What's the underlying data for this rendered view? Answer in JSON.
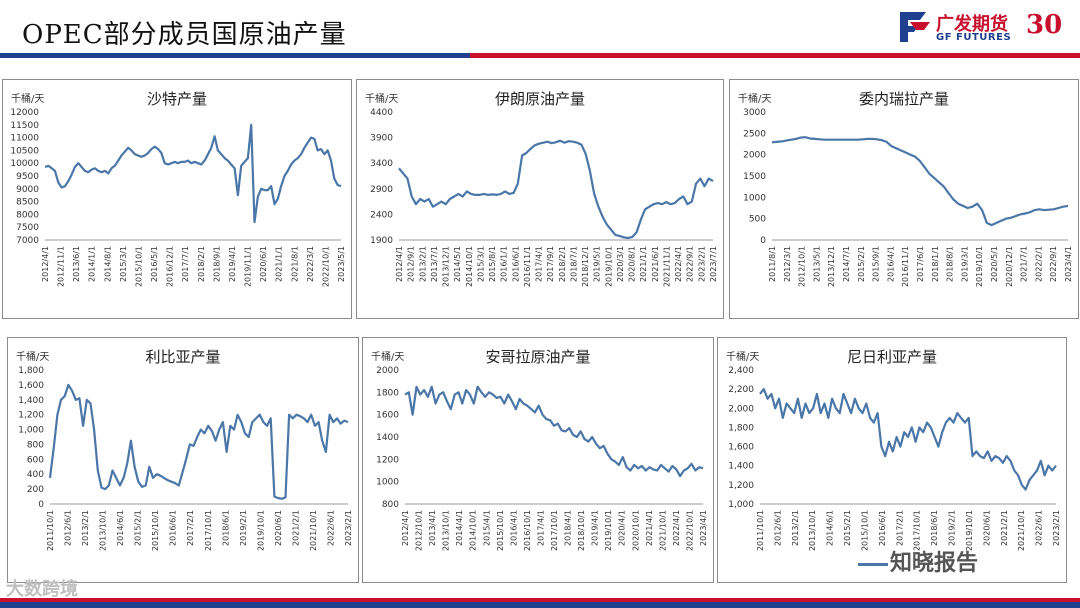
{
  "header": {
    "title": "OPEC部分成员国原油产量",
    "logo_cn": "广发期货",
    "logo_en": "GF FUTURES",
    "logo_anniv": "30"
  },
  "watermarks": {
    "left": "大数跨境",
    "right": "知晓报告"
  },
  "colors": {
    "line": "#4a76a8",
    "blue": "#1f3f8f",
    "red": "#c8102e"
  },
  "chart_data": [
    {
      "type": "line",
      "title": "沙特产量",
      "unit": "千桶/天",
      "ylim": [
        7000,
        12000
      ],
      "yticks": [
        7000,
        7500,
        8000,
        8500,
        9000,
        9500,
        10000,
        10500,
        11000,
        11500,
        12000
      ],
      "xticks": [
        "2012/4/1",
        "2012/11/1",
        "2013/6/1",
        "2014/1/1",
        "2014/8/1",
        "2015/3/1",
        "2015/10/1",
        "2016/5/1",
        "2016/12/1",
        "2017/7/1",
        "2018/2/1",
        "2018/9/1",
        "2019/4/1",
        "2019/11/1",
        "2020/6/1",
        "2021/1/1",
        "2021/8/1",
        "2022/3/1",
        "2022/10/1",
        "2023/5/1"
      ],
      "values": [
        9850,
        9900,
        9800,
        9700,
        9250,
        9050,
        9100,
        9300,
        9550,
        9850,
        10000,
        9850,
        9700,
        9650,
        9750,
        9800,
        9700,
        9650,
        9700,
        9600,
        9800,
        9900,
        10100,
        10300,
        10450,
        10600,
        10500,
        10350,
        10300,
        10250,
        10300,
        10400,
        10550,
        10650,
        10550,
        10400,
        10000,
        9950,
        10000,
        10050,
        10000,
        10050,
        10050,
        10100,
        10000,
        10050,
        10000,
        9950,
        10100,
        10350,
        10600,
        11050,
        10500,
        10350,
        10200,
        10100,
        9950,
        9800,
        8750,
        9900,
        10050,
        10200,
        11500,
        7700,
        8700,
        9000,
        8950,
        8950,
        9100,
        8400,
        8600,
        9100,
        9500,
        9700,
        9950,
        10100,
        10200,
        10350,
        10600,
        10800,
        11000,
        10950,
        10500,
        10550,
        10350,
        10500,
        10100,
        9400,
        9150,
        9100
      ]
    },
    {
      "type": "line",
      "title": "伊朗原油产量",
      "unit": "千桶/天",
      "ylim": [
        1900,
        4400
      ],
      "yticks": [
        1900,
        2400,
        2900,
        3400,
        3900,
        4400
      ],
      "xticks": [
        "2012/4/1",
        "2012/9/1",
        "2013/2/1",
        "2013/7/1",
        "2013/12/1",
        "2014/5/1",
        "2014/10/1",
        "2015/3/1",
        "2015/8/1",
        "2016/1/1",
        "2016/6/1",
        "2016/11/1",
        "2017/4/1",
        "2017/9/1",
        "2018/2/1",
        "2018/7/1",
        "2018/12/1",
        "2019/5/1",
        "2019/10/1",
        "2020/3/1",
        "2020/8/1",
        "2021/1/1",
        "2021/6/1",
        "2021/11/1",
        "2022/4/1",
        "2022/9/1",
        "2023/2/1",
        "2023/7/1"
      ],
      "values": [
        3300,
        3200,
        3100,
        2750,
        2600,
        2700,
        2650,
        2700,
        2550,
        2600,
        2650,
        2600,
        2700,
        2750,
        2800,
        2750,
        2850,
        2800,
        2780,
        2780,
        2800,
        2780,
        2790,
        2780,
        2800,
        2850,
        2800,
        2820,
        3000,
        3550,
        3600,
        3680,
        3750,
        3780,
        3800,
        3820,
        3790,
        3810,
        3840,
        3800,
        3830,
        3820,
        3800,
        3760,
        3580,
        3250,
        2800,
        2550,
        2350,
        2200,
        2100,
        2000,
        1980,
        1950,
        1940,
        1960,
        2050,
        2300,
        2500,
        2550,
        2600,
        2620,
        2600,
        2640,
        2600,
        2620,
        2700,
        2750,
        2600,
        2650,
        3000,
        3100,
        2950,
        3100,
        3050
      ]
    },
    {
      "type": "line",
      "title": "委内瑞拉产量",
      "unit": "千桶/天",
      "ylim": [
        0,
        3000
      ],
      "yticks": [
        0,
        500,
        1000,
        1500,
        2000,
        2500,
        3000
      ],
      "xticks": [
        "2011/8/1",
        "2012/3/1",
        "2012/10/1",
        "2013/5/1",
        "2013/12/1",
        "2014/7/1",
        "2015/2/1",
        "2015/9/1",
        "2016/4/1",
        "2016/11/1",
        "2017/6/1",
        "2018/1/1",
        "2018/8/1",
        "2019/3/1",
        "2019/10/1",
        "2020/5/1",
        "2020/12/1",
        "2021/7/1",
        "2022/2/1",
        "2022/9/1",
        "2023/4/1"
      ],
      "values": [
        2290,
        2300,
        2310,
        2330,
        2350,
        2370,
        2400,
        2410,
        2380,
        2370,
        2360,
        2350,
        2350,
        2350,
        2350,
        2350,
        2350,
        2350,
        2350,
        2360,
        2370,
        2370,
        2360,
        2340,
        2300,
        2200,
        2150,
        2100,
        2050,
        2000,
        1950,
        1850,
        1700,
        1550,
        1450,
        1350,
        1250,
        1100,
        950,
        850,
        800,
        750,
        780,
        850,
        700,
        400,
        350,
        400,
        450,
        500,
        520,
        560,
        600,
        620,
        650,
        700,
        720,
        700,
        710,
        720,
        750,
        780,
        800
      ]
    },
    {
      "type": "line",
      "title": "利比亚产量",
      "unit": "千桶/天",
      "ylim": [
        0,
        1800
      ],
      "yticks": [
        0,
        200,
        400,
        600,
        800,
        1000,
        1200,
        1400,
        1600,
        1800
      ],
      "xticks": [
        "2011/10/1",
        "2012/6/1",
        "2013/2/1",
        "2013/10/1",
        "2014/6/1",
        "2015/2/1",
        "2015/10/1",
        "2016/6/1",
        "2017/2/1",
        "2017/10/1",
        "2018/6/1",
        "2019/2/1",
        "2019/10/1",
        "2020/6/1",
        "2021/2/1",
        "2021/10/1",
        "2022/6/1",
        "2023/2/1"
      ],
      "values": [
        350,
        750,
        1200,
        1400,
        1450,
        1600,
        1520,
        1400,
        1420,
        1050,
        1400,
        1350,
        1000,
        450,
        220,
        200,
        250,
        450,
        350,
        250,
        350,
        550,
        850,
        500,
        300,
        230,
        250,
        500,
        350,
        400,
        380,
        350,
        320,
        300,
        280,
        250,
        420,
        600,
        800,
        780,
        900,
        1000,
        950,
        1050,
        980,
        850,
        1000,
        1100,
        700,
        1050,
        1000,
        1200,
        1100,
        950,
        900,
        1100,
        1150,
        1200,
        1100,
        1050,
        1150,
        100,
        80,
        70,
        90,
        1200,
        1150,
        1200,
        1180,
        1150,
        1100,
        1200,
        1050,
        1100,
        850,
        700,
        1200,
        1100,
        1150,
        1080,
        1120,
        1100
      ]
    },
    {
      "type": "line",
      "title": "安哥拉原油产量",
      "unit": "千桶/天",
      "ylim": [
        800,
        2000
      ],
      "yticks": [
        800,
        1000,
        1200,
        1400,
        1600,
        1800,
        2000
      ],
      "xticks": [
        "2012/4/1",
        "2012/10/1",
        "2013/4/1",
        "2013/10/1",
        "2014/4/1",
        "2014/10/1",
        "2015/4/1",
        "2015/10/1",
        "2016/4/1",
        "2016/10/1",
        "2017/4/1",
        "2017/10/1",
        "2018/4/1",
        "2018/10/1",
        "2019/4/1",
        "2019/10/1",
        "2020/4/1",
        "2020/10/1",
        "2021/4/1",
        "2021/10/1",
        "2022/4/1",
        "2022/10/1",
        "2023/4/1"
      ],
      "values": [
        1780,
        1800,
        1600,
        1850,
        1780,
        1820,
        1760,
        1850,
        1700,
        1780,
        1800,
        1720,
        1650,
        1780,
        1800,
        1700,
        1820,
        1780,
        1700,
        1850,
        1800,
        1760,
        1800,
        1780,
        1750,
        1760,
        1700,
        1780,
        1720,
        1650,
        1740,
        1700,
        1680,
        1650,
        1620,
        1680,
        1600,
        1560,
        1550,
        1500,
        1520,
        1460,
        1450,
        1480,
        1420,
        1400,
        1450,
        1380,
        1360,
        1400,
        1340,
        1300,
        1320,
        1250,
        1200,
        1180,
        1150,
        1220,
        1130,
        1100,
        1150,
        1120,
        1140,
        1100,
        1130,
        1110,
        1100,
        1150,
        1120,
        1090,
        1140,
        1110,
        1050,
        1100,
        1120,
        1160,
        1100,
        1130,
        1120
      ]
    },
    {
      "type": "line",
      "title": "尼日利亚产量",
      "unit": "千桶/天",
      "ylim": [
        1000,
        2400
      ],
      "yticks": [
        1000,
        1200,
        1400,
        1600,
        1800,
        2000,
        2200,
        2400
      ],
      "xticks": [
        "2011/10/1",
        "2012/6/1",
        "2013/2/1",
        "2013/10/1",
        "2014/6/1",
        "2015/2/1",
        "2015/10/1",
        "2016/6/1",
        "2017/2/1",
        "2017/10/1",
        "2018/6/1",
        "2019/2/1",
        "2019/10/1",
        "2020/6/1",
        "2021/2/1",
        "2021/10/1",
        "2022/6/1",
        "2023/2/1"
      ],
      "values": [
        2150,
        2200,
        2100,
        2150,
        2000,
        2100,
        1900,
        2050,
        2000,
        1950,
        2100,
        1900,
        2050,
        1950,
        2000,
        2150,
        1950,
        2050,
        1900,
        2100,
        2000,
        1950,
        2150,
        2050,
        1950,
        2100,
        2000,
        1950,
        2050,
        1900,
        1850,
        1950,
        1600,
        1500,
        1650,
        1550,
        1700,
        1600,
        1750,
        1700,
        1800,
        1650,
        1800,
        1750,
        1850,
        1800,
        1700,
        1600,
        1750,
        1850,
        1900,
        1850,
        1950,
        1900,
        1850,
        1900,
        1500,
        1550,
        1500,
        1480,
        1550,
        1450,
        1500,
        1480,
        1430,
        1500,
        1450,
        1350,
        1300,
        1200,
        1150,
        1250,
        1300,
        1350,
        1450,
        1300,
        1400,
        1350,
        1400
      ]
    }
  ]
}
